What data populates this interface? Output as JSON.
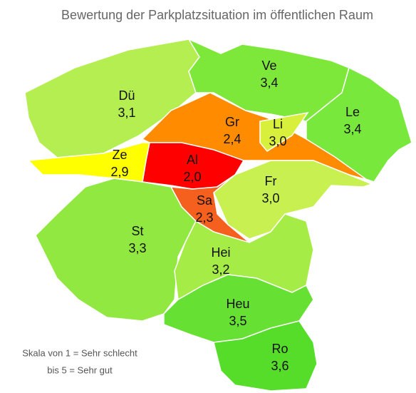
{
  "title": "Bewertung der Parkplatzsituation im öffentlichen Raum",
  "regions": [
    {
      "name": "Dü",
      "value": 3.1,
      "value_label": "3,1",
      "color": "#b4ee50"
    },
    {
      "name": "Ve",
      "value": 3.4,
      "value_label": "3,4",
      "color": "#7de83a"
    },
    {
      "name": "Le",
      "value": 3.4,
      "value_label": "3,4",
      "color": "#78e83c"
    },
    {
      "name": "Gr",
      "value": 2.4,
      "value_label": "2,4",
      "color": "#ff8c00"
    },
    {
      "name": "Li",
      "value": 3.0,
      "value_label": "3,0",
      "color": "#d8f03c"
    },
    {
      "name": "Al",
      "value": 2.0,
      "value_label": "2,0",
      "color": "#ff0000"
    },
    {
      "name": "Ze",
      "value": 2.9,
      "value_label": "2,9",
      "color": "#ffff00"
    },
    {
      "name": "Fr",
      "value": 3.0,
      "value_label": "3,0",
      "color": "#c8f050"
    },
    {
      "name": "Sa",
      "value": 2.3,
      "value_label": "2,3",
      "color": "#f5601e"
    },
    {
      "name": "St",
      "value": 3.3,
      "value_label": "3,3",
      "color": "#90e840"
    },
    {
      "name": "Hei",
      "value": 3.2,
      "value_label": "3,2",
      "color": "#a6ec46"
    },
    {
      "name": "Heu",
      "value": 3.5,
      "value_label": "3,5",
      "color": "#66e032"
    },
    {
      "name": "Ro",
      "value": 3.6,
      "value_label": "3,6",
      "color": "#55dd2a"
    }
  ],
  "scale_note": [
    "Skala von 1 = Sehr schlecht",
    "bis 5 = Sehr gut"
  ]
}
